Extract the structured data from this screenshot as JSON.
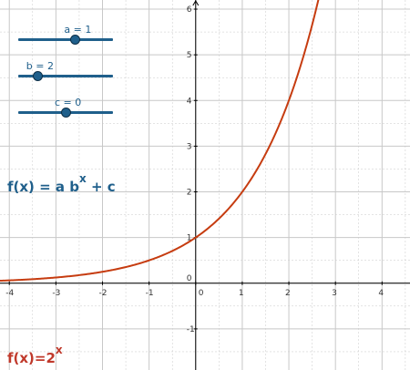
{
  "colors": {
    "curve": "#c63c10",
    "slider": "#1f5f8b",
    "grid": "#c8c8c8",
    "axis": "#000000",
    "formula_general": "#1f5f8b",
    "formula_current": "#c0392b"
  },
  "sliders": [
    {
      "label": "a = 1",
      "value": 1,
      "min": -5,
      "max": 5
    },
    {
      "label": "b = 2",
      "value": 2,
      "min": 0,
      "max": 10
    },
    {
      "label": "c = 0",
      "value": 0,
      "min": -5,
      "max": 5
    }
  ],
  "formula_general": {
    "main": "f(x) = a b",
    "exponent": "x",
    "tail": " + c"
  },
  "formula_current": {
    "main": "f(x)=2",
    "exponent": "x"
  },
  "chart_data": {
    "type": "line",
    "function": "2^x",
    "xlim": [
      -4.2,
      4.6
    ],
    "ylim": [
      -1.9,
      6.2
    ],
    "x_ticks": [
      "-4",
      "-3",
      "-2",
      "-1",
      "0",
      "1",
      "2",
      "3",
      "4"
    ],
    "y_ticks": [
      "-1",
      "0",
      "1",
      "2",
      "3",
      "4",
      "5",
      "6"
    ],
    "grid": true
  }
}
